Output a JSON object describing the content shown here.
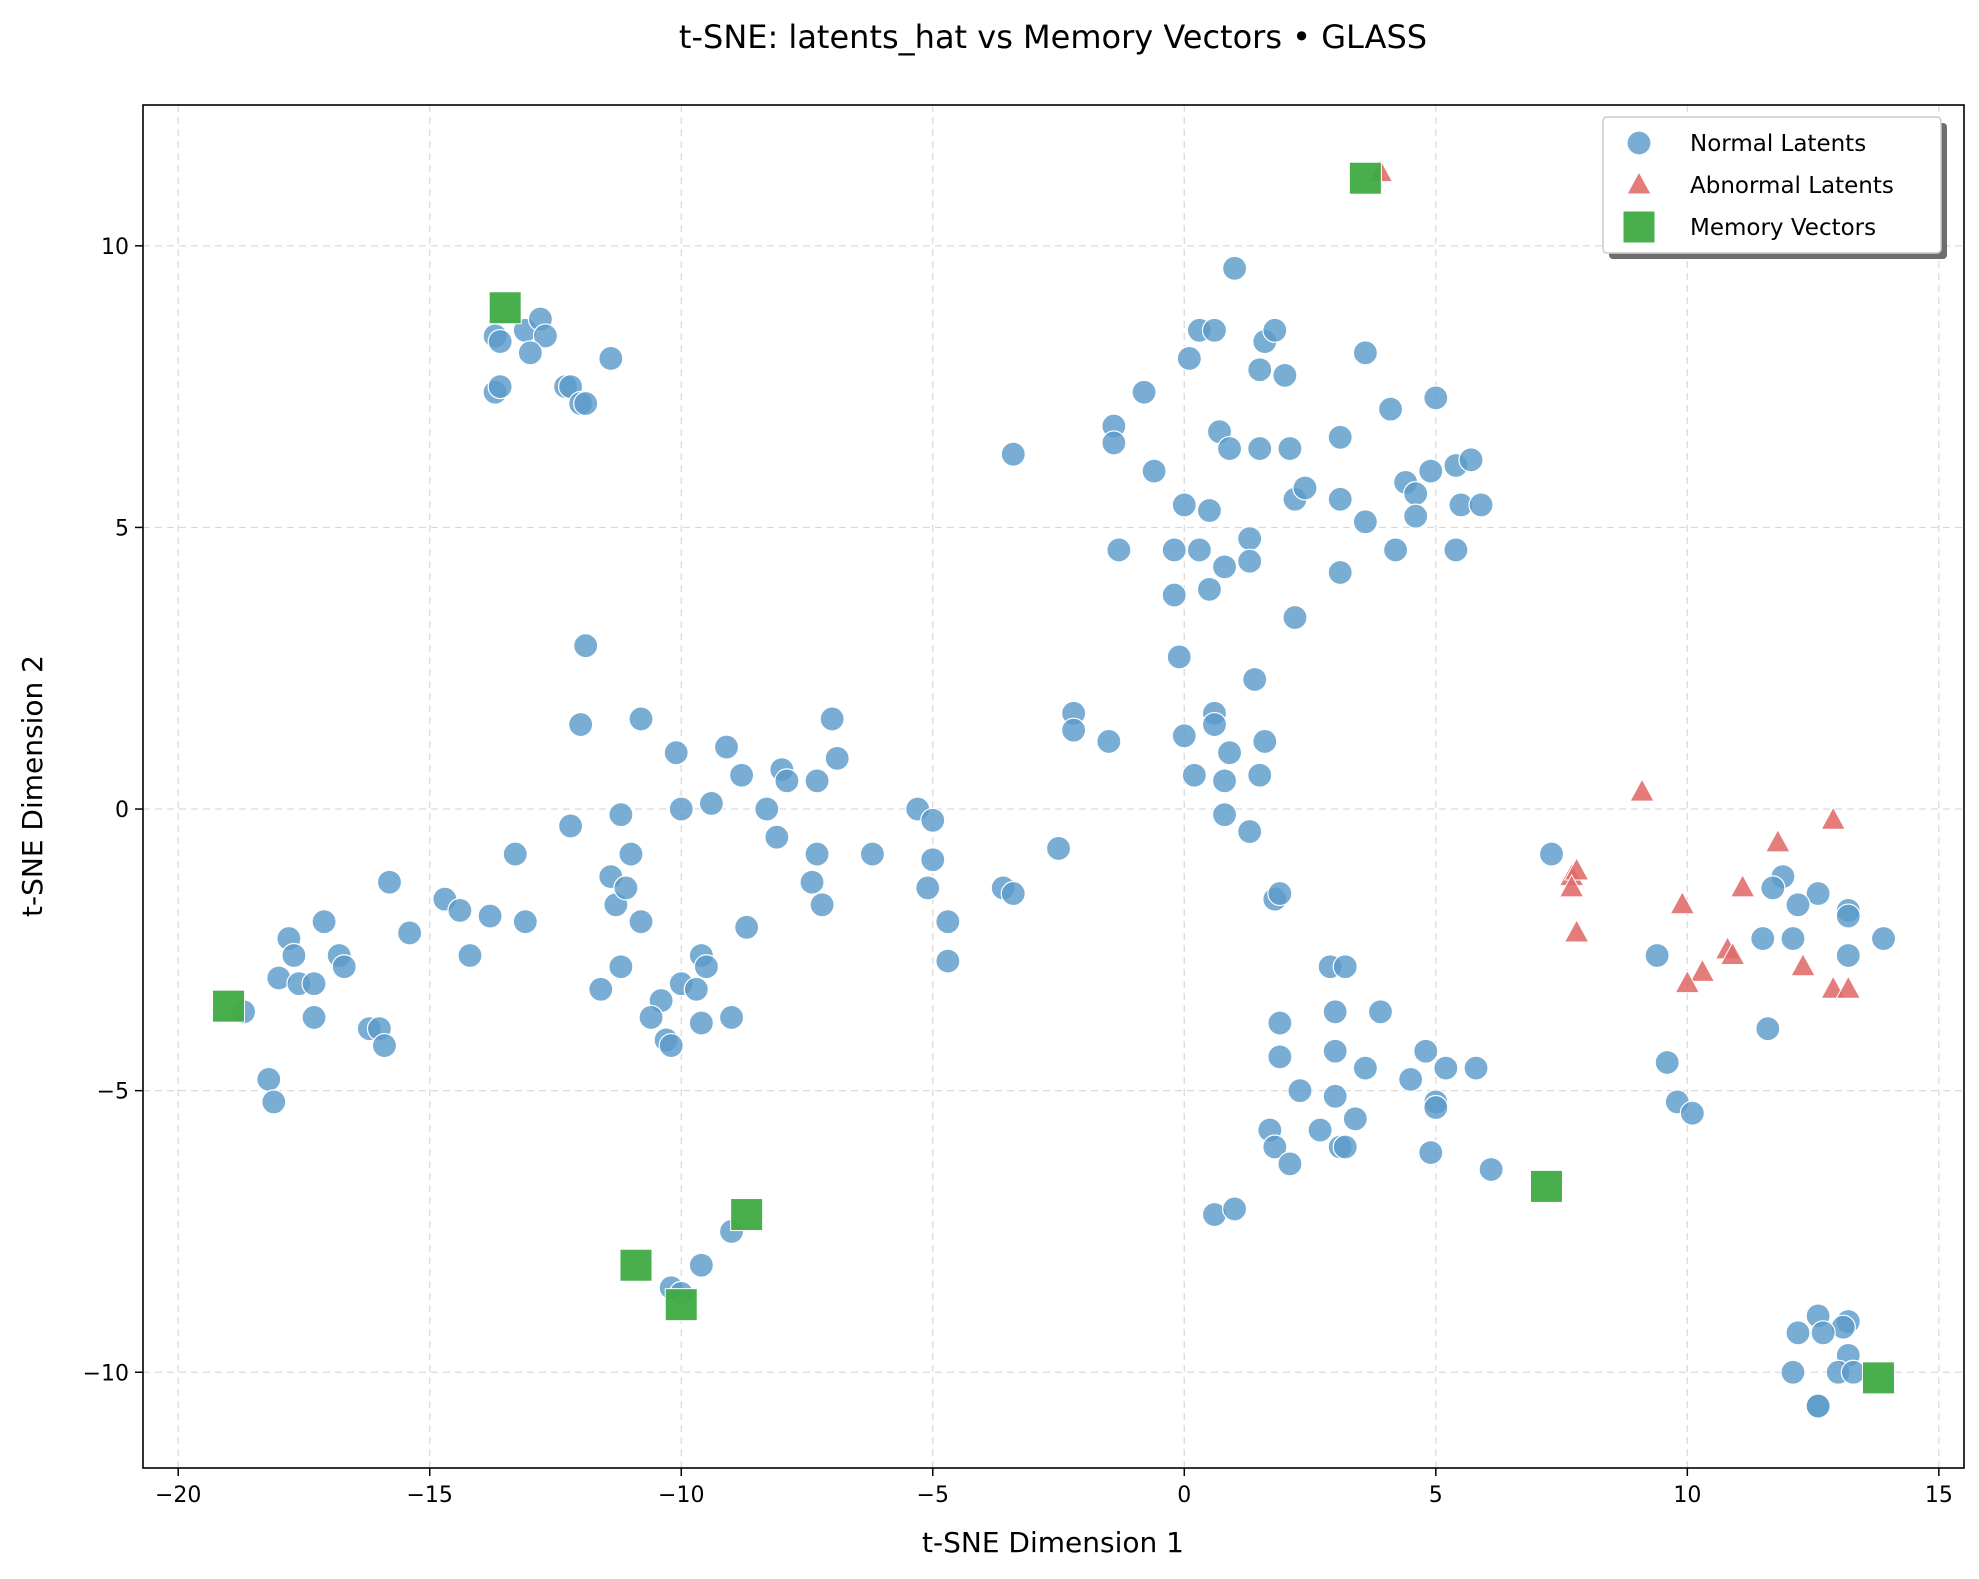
{
  "chart_data": {
    "type": "scatter",
    "title": "t-SNE: latents_hat vs Memory Vectors • GLASS",
    "xlabel": "t-SNE Dimension 1",
    "ylabel": "t-SNE Dimension 2",
    "xlim": [
      -20.7,
      15.5
    ],
    "ylim": [
      -11.7,
      12.5
    ],
    "xticks": [
      -20,
      -15,
      -10,
      -5,
      0,
      5,
      10,
      15
    ],
    "yticks": [
      -10,
      -5,
      0,
      5,
      10
    ],
    "xtick_labels": [
      "−20",
      "−15",
      "−10",
      "−5",
      "0",
      "5",
      "10",
      "15"
    ],
    "ytick_labels": [
      "−10",
      "−5",
      "0",
      "5",
      "10"
    ],
    "grid": true,
    "legend_position": "top-right",
    "series": [
      {
        "name": "Normal Latents",
        "marker": "circle",
        "color": "#5b9bcb",
        "points": [
          [
            -13.7,
            8.4
          ],
          [
            -13.6,
            8.3
          ],
          [
            -13.1,
            8.5
          ],
          [
            -12.8,
            8.7
          ],
          [
            -12.7,
            8.4
          ],
          [
            -13.0,
            8.1
          ],
          [
            -13.7,
            7.4
          ],
          [
            -13.6,
            7.5
          ],
          [
            -12.3,
            7.5
          ],
          [
            -12.2,
            7.5
          ],
          [
            -12.0,
            7.2
          ],
          [
            -11.9,
            7.2
          ],
          [
            -11.4,
            8.0
          ],
          [
            -11.9,
            2.9
          ],
          [
            -12.0,
            1.5
          ],
          [
            -10.8,
            1.6
          ],
          [
            -10.1,
            1.0
          ],
          [
            -9.1,
            1.1
          ],
          [
            -8.8,
            0.6
          ],
          [
            -8.0,
            0.7
          ],
          [
            -7.9,
            0.5
          ],
          [
            -7.0,
            1.6
          ],
          [
            -6.9,
            0.9
          ],
          [
            -7.3,
            0.5
          ],
          [
            -8.3,
            0.0
          ],
          [
            -9.4,
            0.1
          ],
          [
            -10.0,
            0.0
          ],
          [
            -11.2,
            -0.1
          ],
          [
            -12.2,
            -0.3
          ],
          [
            -13.3,
            -0.8
          ],
          [
            -15.8,
            -1.3
          ],
          [
            -11.0,
            -0.8
          ],
          [
            -8.1,
            -0.5
          ],
          [
            -7.3,
            -0.8
          ],
          [
            -6.2,
            -0.8
          ],
          [
            -5.3,
            0.0
          ],
          [
            -5.0,
            -0.2
          ],
          [
            -5.0,
            -0.9
          ],
          [
            -5.1,
            -1.4
          ],
          [
            -4.7,
            -2.0
          ],
          [
            -4.7,
            -2.7
          ],
          [
            -2.5,
            -0.7
          ],
          [
            -3.6,
            -1.4
          ],
          [
            -3.4,
            -1.5
          ],
          [
            -7.4,
            -1.3
          ],
          [
            -7.2,
            -1.7
          ],
          [
            -11.4,
            -1.2
          ],
          [
            -11.3,
            -1.7
          ],
          [
            -11.1,
            -1.4
          ],
          [
            -10.8,
            -2.0
          ],
          [
            -8.7,
            -2.1
          ],
          [
            -14.7,
            -1.6
          ],
          [
            -14.4,
            -1.8
          ],
          [
            -15.4,
            -2.2
          ],
          [
            -13.8,
            -1.9
          ],
          [
            -13.1,
            -2.0
          ],
          [
            -14.2,
            -2.6
          ],
          [
            -17.8,
            -2.3
          ],
          [
            -17.1,
            -2.0
          ],
          [
            -17.7,
            -2.6
          ],
          [
            -16.8,
            -2.6
          ],
          [
            -16.7,
            -2.8
          ],
          [
            -18.0,
            -3.0
          ],
          [
            -17.6,
            -3.1
          ],
          [
            -17.3,
            -3.1
          ],
          [
            -17.3,
            -3.7
          ],
          [
            -11.2,
            -2.8
          ],
          [
            -11.6,
            -3.2
          ],
          [
            -9.6,
            -2.6
          ],
          [
            -9.5,
            -2.8
          ],
          [
            -10.4,
            -3.4
          ],
          [
            -10.0,
            -3.1
          ],
          [
            -9.7,
            -3.2
          ],
          [
            -10.6,
            -3.7
          ],
          [
            -9.6,
            -3.8
          ],
          [
            -9.0,
            -3.7
          ],
          [
            -10.3,
            -4.1
          ],
          [
            -10.2,
            -4.2
          ],
          [
            -16.2,
            -3.9
          ],
          [
            -16.0,
            -3.9
          ],
          [
            -15.9,
            -4.2
          ],
          [
            -18.7,
            -3.6
          ],
          [
            -18.2,
            -4.8
          ],
          [
            -18.1,
            -5.2
          ],
          [
            -9.0,
            -7.5
          ],
          [
            -9.6,
            -8.1
          ],
          [
            -10.2,
            -8.5
          ],
          [
            -10.0,
            -8.6
          ],
          [
            -3.4,
            6.3
          ],
          [
            -1.4,
            6.8
          ],
          [
            -1.4,
            6.5
          ],
          [
            -0.8,
            7.4
          ],
          [
            -0.6,
            6.0
          ],
          [
            -1.3,
            4.6
          ],
          [
            0.3,
            8.5
          ],
          [
            0.6,
            8.5
          ],
          [
            0.1,
            8.0
          ],
          [
            1.0,
            9.6
          ],
          [
            1.6,
            8.3
          ],
          [
            1.8,
            8.5
          ],
          [
            1.5,
            7.8
          ],
          [
            2.0,
            7.7
          ],
          [
            3.6,
            8.1
          ],
          [
            4.1,
            7.1
          ],
          [
            5.0,
            7.3
          ],
          [
            0.7,
            6.7
          ],
          [
            0.9,
            6.4
          ],
          [
            1.5,
            6.4
          ],
          [
            2.1,
            6.4
          ],
          [
            3.1,
            6.6
          ],
          [
            0.0,
            5.4
          ],
          [
            0.5,
            5.3
          ],
          [
            0.3,
            4.6
          ],
          [
            -0.2,
            4.6
          ],
          [
            0.8,
            4.3
          ],
          [
            1.3,
            4.8
          ],
          [
            1.3,
            4.4
          ],
          [
            2.2,
            5.5
          ],
          [
            2.4,
            5.7
          ],
          [
            3.1,
            5.5
          ],
          [
            3.6,
            5.1
          ],
          [
            4.4,
            5.8
          ],
          [
            4.6,
            5.6
          ],
          [
            4.9,
            6.0
          ],
          [
            5.4,
            6.1
          ],
          [
            5.7,
            6.2
          ],
          [
            4.6,
            5.2
          ],
          [
            5.5,
            5.4
          ],
          [
            5.9,
            5.4
          ],
          [
            4.2,
            4.6
          ],
          [
            5.4,
            4.6
          ],
          [
            -0.2,
            3.8
          ],
          [
            0.5,
            3.9
          ],
          [
            3.1,
            4.2
          ],
          [
            2.2,
            3.4
          ],
          [
            -0.1,
            2.7
          ],
          [
            1.4,
            2.3
          ],
          [
            -2.2,
            1.7
          ],
          [
            -2.2,
            1.4
          ],
          [
            -1.5,
            1.2
          ],
          [
            0.0,
            1.3
          ],
          [
            0.6,
            1.7
          ],
          [
            0.6,
            1.5
          ],
          [
            0.9,
            1.0
          ],
          [
            1.6,
            1.2
          ],
          [
            0.2,
            0.6
          ],
          [
            0.8,
            0.5
          ],
          [
            1.5,
            0.6
          ],
          [
            0.8,
            -0.1
          ],
          [
            1.3,
            -0.4
          ],
          [
            1.8,
            -1.6
          ],
          [
            1.9,
            -1.5
          ],
          [
            2.9,
            -2.8
          ],
          [
            3.2,
            -2.8
          ],
          [
            1.9,
            -3.8
          ],
          [
            3.0,
            -3.6
          ],
          [
            3.9,
            -3.6
          ],
          [
            1.9,
            -4.4
          ],
          [
            3.0,
            -4.3
          ],
          [
            3.6,
            -4.6
          ],
          [
            4.8,
            -4.3
          ],
          [
            4.5,
            -4.8
          ],
          [
            5.2,
            -4.6
          ],
          [
            5.8,
            -4.6
          ],
          [
            2.3,
            -5.0
          ],
          [
            3.0,
            -5.1
          ],
          [
            5.0,
            -5.2
          ],
          [
            5.0,
            -5.3
          ],
          [
            1.7,
            -5.7
          ],
          [
            2.7,
            -5.7
          ],
          [
            3.4,
            -5.5
          ],
          [
            1.8,
            -6.0
          ],
          [
            3.1,
            -6.0
          ],
          [
            3.2,
            -6.0
          ],
          [
            2.1,
            -6.3
          ],
          [
            4.9,
            -6.1
          ],
          [
            6.1,
            -6.4
          ],
          [
            0.6,
            -7.2
          ],
          [
            1.0,
            -7.1
          ],
          [
            7.3,
            -0.8
          ],
          [
            11.9,
            -1.2
          ],
          [
            11.7,
            -1.4
          ],
          [
            12.6,
            -1.5
          ],
          [
            13.2,
            -1.8
          ],
          [
            13.2,
            -1.9
          ],
          [
            12.2,
            -1.7
          ],
          [
            11.5,
            -2.3
          ],
          [
            12.1,
            -2.3
          ],
          [
            13.9,
            -2.3
          ],
          [
            9.4,
            -2.6
          ],
          [
            13.2,
            -2.6
          ],
          [
            11.6,
            -3.9
          ],
          [
            9.6,
            -4.5
          ],
          [
            9.8,
            -5.2
          ],
          [
            10.1,
            -5.4
          ],
          [
            12.6,
            -9.0
          ],
          [
            13.2,
            -9.1
          ],
          [
            13.1,
            -9.2
          ],
          [
            12.2,
            -9.3
          ],
          [
            12.7,
            -9.3
          ],
          [
            13.2,
            -9.7
          ],
          [
            12.1,
            -10.0
          ],
          [
            13.0,
            -10.0
          ],
          [
            13.3,
            -10.0
          ],
          [
            12.6,
            -10.6
          ],
          [
            12.6,
            -10.6
          ]
        ]
      },
      {
        "name": "Abnormal Latents",
        "marker": "triangle",
        "color": "#e06a6a",
        "points": [
          [
            3.9,
            11.3
          ],
          [
            9.1,
            0.3
          ],
          [
            12.9,
            -0.2
          ],
          [
            11.8,
            -0.6
          ],
          [
            7.7,
            -1.2
          ],
          [
            7.8,
            -1.1
          ],
          [
            7.7,
            -1.4
          ],
          [
            11.1,
            -1.4
          ],
          [
            9.9,
            -1.7
          ],
          [
            7.8,
            -2.2
          ],
          [
            10.8,
            -2.5
          ],
          [
            10.9,
            -2.6
          ],
          [
            12.3,
            -2.8
          ],
          [
            10.3,
            -2.9
          ],
          [
            10.0,
            -3.1
          ],
          [
            12.9,
            -3.2
          ],
          [
            13.2,
            -3.2
          ]
        ]
      },
      {
        "name": "Memory Vectors",
        "marker": "square",
        "color": "#3fab43",
        "points": [
          [
            3.6,
            11.2
          ],
          [
            -13.5,
            8.9
          ],
          [
            -19.0,
            -3.5
          ],
          [
            -8.7,
            -7.2
          ],
          [
            -10.9,
            -8.1
          ],
          [
            -10.0,
            -8.8
          ],
          [
            7.2,
            -6.7
          ],
          [
            13.8,
            -10.1
          ]
        ]
      }
    ]
  }
}
